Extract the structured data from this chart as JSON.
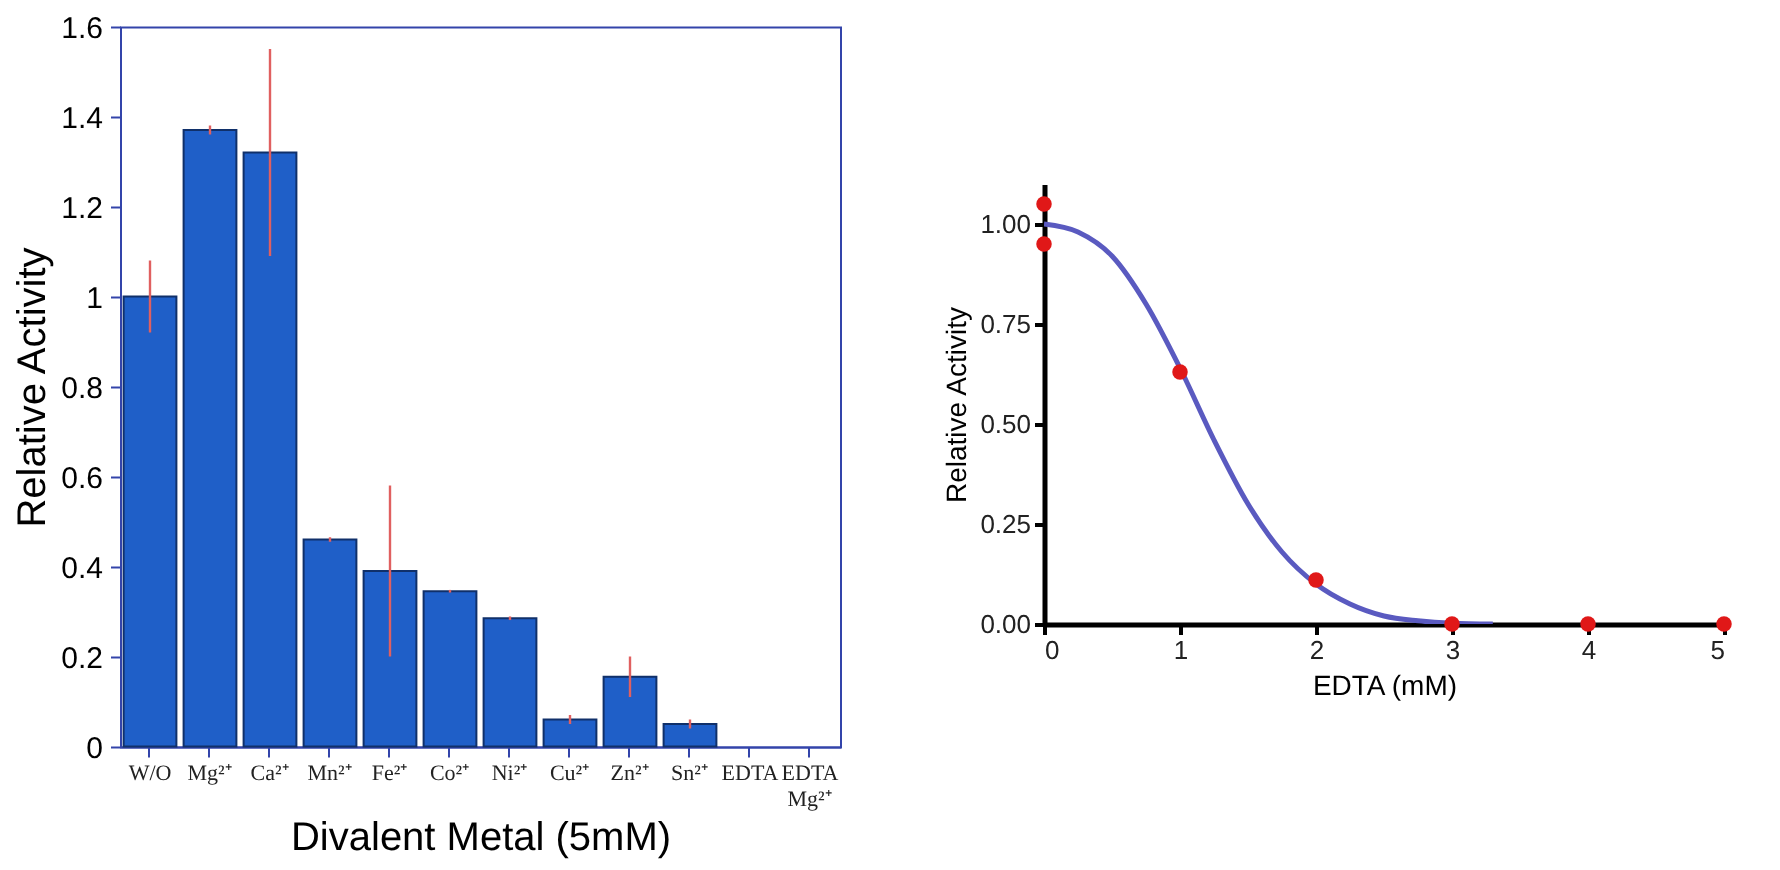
{
  "chart_data": [
    {
      "type": "bar",
      "xlabel": "Divalent Metal (5mM)",
      "ylabel": "Relative Activity",
      "categories": [
        "W/O",
        "Mg²⁺",
        "Ca²⁺",
        "Mn²⁺",
        "Fe²⁺",
        "Co²⁺",
        "Ni²⁺",
        "Cu²⁺",
        "Zn²⁺",
        "Sn²⁺",
        "EDTA",
        "EDTA Mg²⁺"
      ],
      "values": [
        1.0,
        1.37,
        1.32,
        0.46,
        0.39,
        0.345,
        0.285,
        0.06,
        0.155,
        0.05,
        0,
        0
      ],
      "errors": [
        0.08,
        0.01,
        0.23,
        0.005,
        0.19,
        0.003,
        0.004,
        0.01,
        0.045,
        0.01,
        null,
        null
      ],
      "color": "#1f5fc8",
      "ylim": [
        0,
        1.6
      ],
      "yticks": [
        0,
        0.2,
        0.4,
        0.6,
        0.8,
        1,
        1.2,
        1.4,
        1.6
      ]
    },
    {
      "type": "scatter",
      "xlabel": "EDTA (mM)",
      "ylabel": "Relative Activity",
      "xlim": [
        0,
        5
      ],
      "xticks": [
        0,
        1,
        2,
        3,
        4,
        5
      ],
      "ylim": [
        0,
        1.1
      ],
      "yticks": [
        {
          "value": 0,
          "label": "0.00"
        },
        {
          "value": 0.25,
          "label": "0.25"
        },
        {
          "value": 0.5,
          "label": "0.50"
        },
        {
          "value": 0.75,
          "label": "0.75"
        },
        {
          "value": 1,
          "label": "1.00"
        }
      ],
      "series": [
        {
          "type": "line",
          "color": "#5a5ac0",
          "marker": "none",
          "x": [
            0,
            0.25,
            0.5,
            0.75,
            1,
            1.25,
            1.5,
            1.75,
            2,
            2.25,
            2.5,
            2.75,
            3,
            3.3
          ],
          "values": [
            1.0,
            0.98,
            0.92,
            0.8,
            0.64,
            0.46,
            0.3,
            0.18,
            0.1,
            0.05,
            0.02,
            0.008,
            0.002,
            0
          ]
        },
        {
          "type": "scatter",
          "color": "#e01818",
          "marker": "circle",
          "x": [
            0,
            0,
            1,
            2,
            3,
            4,
            5
          ],
          "values": [
            1.05,
            0.95,
            0.63,
            0.11,
            0,
            0,
            0
          ]
        }
      ]
    }
  ]
}
